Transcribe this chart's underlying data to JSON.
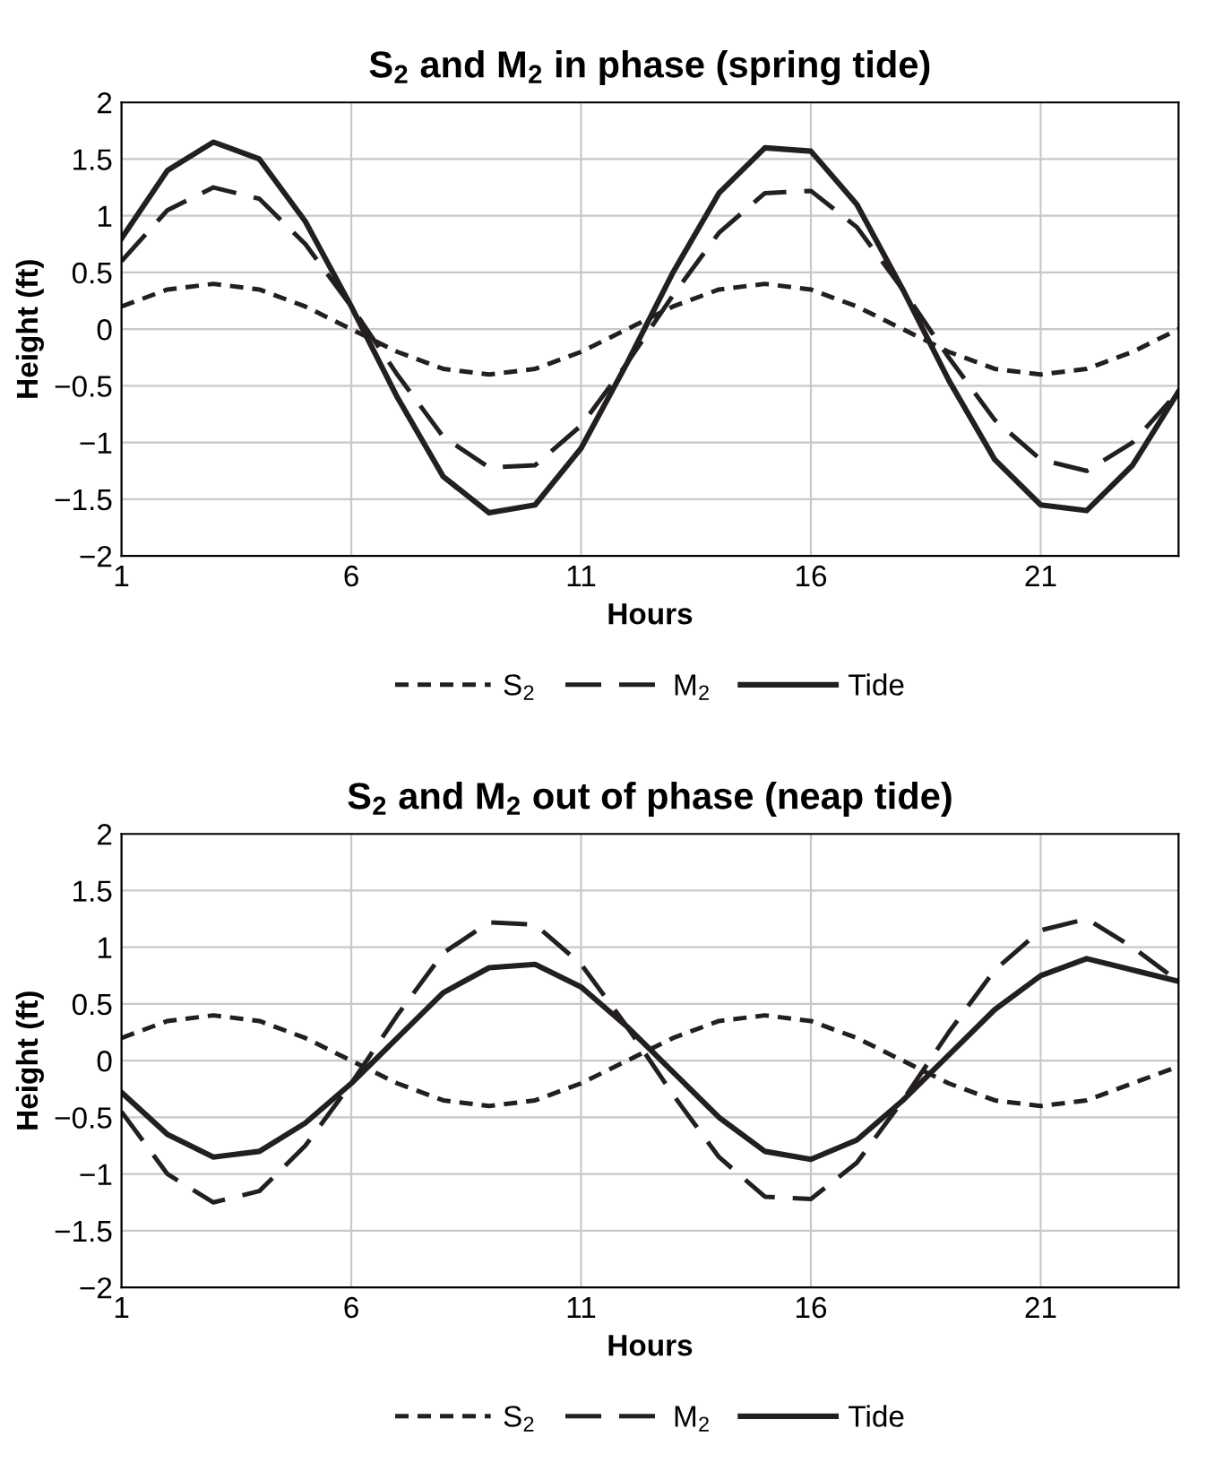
{
  "chart_data": [
    {
      "type": "line",
      "title": "S$_{2}$ and M$_{2}$ in phase (spring tide)",
      "xlabel": "Hours",
      "ylabel": "Height (ft)",
      "x": [
        1,
        2,
        3,
        4,
        5,
        6,
        7,
        8,
        9,
        10,
        11,
        12,
        13,
        14,
        15,
        16,
        17,
        18,
        19,
        20,
        21,
        22,
        23,
        24
      ],
      "series": [
        {
          "name": "S$_{2}$",
          "color": "#231f20",
          "line_style": "dotted",
          "values": [
            0.2,
            0.35,
            0.4,
            0.35,
            0.2,
            0,
            -0.2,
            -0.35,
            -0.4,
            -0.35,
            -0.2,
            0,
            0.2,
            0.35,
            0.4,
            0.35,
            0.2,
            0,
            -0.2,
            -0.35,
            -0.4,
            -0.35,
            -0.2,
            0
          ]
        },
        {
          "name": "M$_{2}$",
          "color": "#231f20",
          "line_style": "dashed",
          "values": [
            0.6,
            1.05,
            1.25,
            1.15,
            0.75,
            0.2,
            -0.4,
            -0.95,
            -1.22,
            -1.2,
            -0.85,
            -0.3,
            0.3,
            0.85,
            1.2,
            1.22,
            0.9,
            0.35,
            -0.25,
            -0.8,
            -1.15,
            -1.25,
            -1.0,
            -0.55
          ]
        },
        {
          "name": "Tide",
          "color": "#231f20",
          "line_style": "solid",
          "values": [
            0.8,
            1.4,
            1.65,
            1.5,
            0.95,
            0.2,
            -0.6,
            -1.3,
            -1.62,
            -1.55,
            -1.05,
            -0.3,
            0.5,
            1.2,
            1.6,
            1.57,
            1.1,
            0.35,
            -0.45,
            -1.15,
            -1.55,
            -1.6,
            -1.2,
            -0.55
          ]
        }
      ],
      "xlim": [
        1,
        24
      ],
      "xticks": [
        1,
        6,
        11,
        16,
        21
      ],
      "ylim": [
        -2,
        2
      ],
      "yticks": [
        {
          "value": -2,
          "label": "−2"
        },
        {
          "value": -1.5,
          "label": "−1.5"
        },
        {
          "value": -1,
          "label": "−1"
        },
        {
          "value": -0.5,
          "label": "−0.5"
        },
        0,
        0.5,
        1,
        1.5,
        2
      ],
      "grid": true,
      "legend": "bottom",
      "marker": "none"
    },
    {
      "type": "line",
      "title": "S$_{2}$ and M$_{2}$ out of phase (neap tide)",
      "xlabel": "Hours",
      "ylabel": "Height (ft)",
      "x": [
        1,
        2,
        3,
        4,
        5,
        6,
        7,
        8,
        9,
        10,
        11,
        12,
        13,
        14,
        15,
        16,
        17,
        18,
        19,
        20,
        21,
        22,
        23,
        24
      ],
      "series": [
        {
          "name": "S$_{2}$",
          "color": "#231f20",
          "line_style": "dotted",
          "values": [
            0.2,
            0.35,
            0.4,
            0.35,
            0.2,
            0,
            -0.2,
            -0.35,
            -0.4,
            -0.35,
            -0.2,
            0,
            0.2,
            0.35,
            0.4,
            0.35,
            0.2,
            0,
            -0.2,
            -0.35,
            -0.4,
            -0.35,
            -0.2,
            -0.05
          ]
        },
        {
          "name": "M$_{2}$",
          "color": "#231f20",
          "line_style": "dashed",
          "values": [
            -0.45,
            -1.0,
            -1.25,
            -1.15,
            -0.75,
            -0.2,
            0.4,
            0.95,
            1.22,
            1.2,
            0.85,
            0.3,
            -0.3,
            -0.85,
            -1.2,
            -1.22,
            -0.9,
            -0.35,
            0.25,
            0.8,
            1.15,
            1.25,
            1.0,
            0.7
          ]
        },
        {
          "name": "Tide",
          "color": "#231f20",
          "line_style": "solid",
          "values": [
            -0.28,
            -0.65,
            -0.85,
            -0.8,
            -0.55,
            -0.2,
            0.2,
            0.6,
            0.82,
            0.85,
            0.65,
            0.3,
            -0.1,
            -0.5,
            -0.8,
            -0.87,
            -0.7,
            -0.35,
            0.05,
            0.45,
            0.75,
            0.9,
            0.8,
            0.7
          ]
        }
      ],
      "xlim": [
        1,
        24
      ],
      "xticks": [
        1,
        6,
        11,
        16,
        21
      ],
      "ylim": [
        -2,
        2
      ],
      "yticks": [
        {
          "value": -2,
          "label": "−2"
        },
        {
          "value": -1.5,
          "label": "−1.5"
        },
        {
          "value": -1,
          "label": "−1"
        },
        {
          "value": -0.5,
          "label": "−0.5"
        },
        0,
        0.5,
        1,
        1.5,
        2
      ],
      "grid": true,
      "legend": "bottom",
      "marker": "none"
    }
  ]
}
